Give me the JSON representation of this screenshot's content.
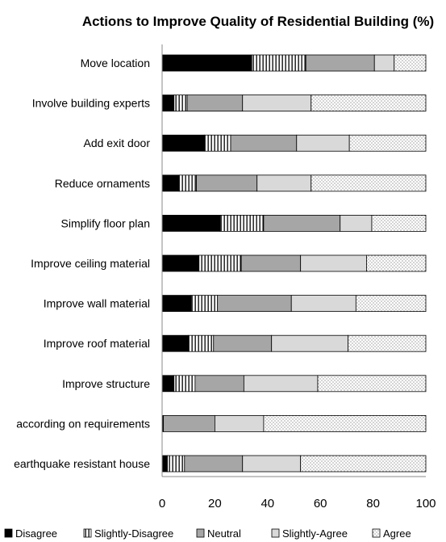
{
  "chart_data": {
    "type": "bar",
    "orientation": "horizontal",
    "stacked": true,
    "title": "Actions to Improve Quality of Residential Building (%)",
    "xlabel": "",
    "ylabel": "",
    "xlim": [
      0,
      100
    ],
    "xticks": [
      "0",
      "20",
      "40",
      "60",
      "80",
      "100"
    ],
    "grid": false,
    "legend_position": "bottom",
    "categories": [
      "Move location",
      "Involve building experts",
      "Add exit door",
      "Reduce ornaments",
      "Simplify floor plan",
      "Improve ceiling material",
      "Improve wall material",
      "Improve roof material",
      "Improve structure",
      "according on requirements",
      "earthquake resistant house"
    ],
    "series": [
      {
        "name": "Disagree",
        "pattern": "solid-black",
        "values": [
          34,
          4.5,
          16,
          6.5,
          22,
          14,
          11,
          10,
          4.5,
          0.5,
          2
        ]
      },
      {
        "name": "Slightly-Disagree",
        "pattern": "vertical-lines",
        "values": [
          20.5,
          5,
          10,
          6.5,
          16.5,
          16,
          10,
          9.5,
          8,
          0,
          6.5
        ]
      },
      {
        "name": "Neutral",
        "pattern": "dark-gray",
        "values": [
          26,
          21,
          25,
          23,
          29,
          22.5,
          28,
          22,
          18.5,
          19.5,
          22
        ]
      },
      {
        "name": "Slightly-Agree",
        "pattern": "light-gray",
        "values": [
          7.5,
          26,
          20,
          20.5,
          12,
          25,
          24.5,
          29,
          28,
          18.5,
          22
        ]
      },
      {
        "name": "Agree",
        "pattern": "dotted",
        "values": [
          12,
          43.5,
          29,
          43.5,
          20.5,
          22.5,
          26.5,
          29.5,
          41,
          61.5,
          47.5
        ]
      }
    ]
  }
}
